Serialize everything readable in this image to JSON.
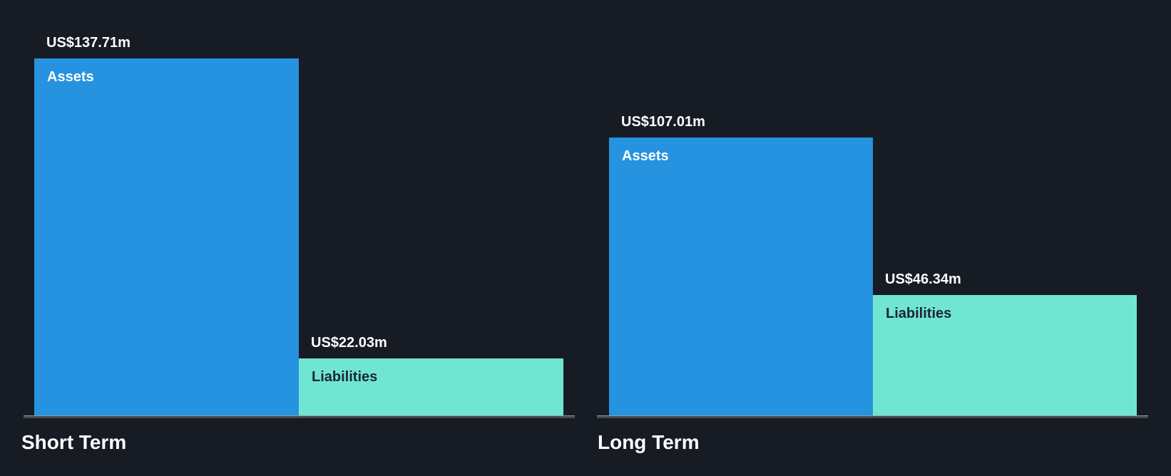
{
  "chart": {
    "background_color": "#161B24",
    "axis_color": "#43484F",
    "axis_highlight_color": "#979DA5",
    "value_label_color": "#FFFFFF",
    "assets_label_color": "#FFFFFF",
    "liabilities_label_color": "#1B2530"
  },
  "chart_data": {
    "type": "bar",
    "title": "",
    "unit": "US$ millions",
    "categories": [
      "Short Term",
      "Long Term"
    ],
    "series": [
      {
        "name": "Assets",
        "color": "#2593DF",
        "values": [
          137.71,
          107.01
        ],
        "value_labels": [
          "US$137.71m",
          "US$107.01m"
        ]
      },
      {
        "name": "Liabilities",
        "color": "#70E6D2",
        "values": [
          22.03,
          46.34
        ],
        "value_labels": [
          "US$22.03m",
          "US$46.34m"
        ]
      }
    ],
    "ylim": [
      0,
      140
    ],
    "grid": false,
    "legend_position": "none - series names rendered inside bars",
    "value_labels_position": "above bars"
  }
}
